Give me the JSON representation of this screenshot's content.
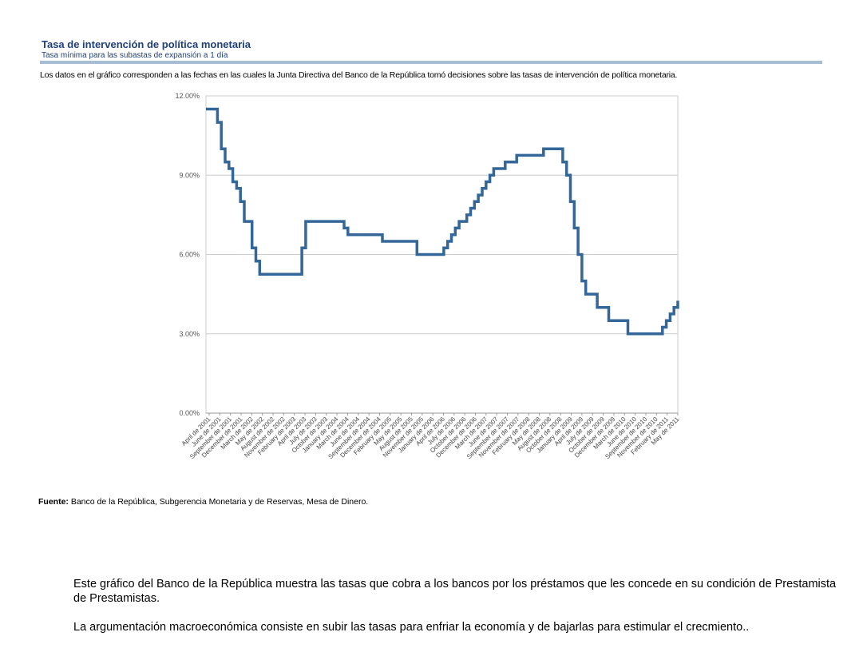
{
  "header": {
    "title": "Tasa de intervención  de política monetaria",
    "subtitle": "Tasa mínima para las subastas de expansión a 1 día"
  },
  "note": "Los datos en el gráfico corresponden a las fechas en las cuales la Junta Directiva del Banco de la República tomó decisiones sobre las tasas de intervención de política monetaria.",
  "source": {
    "label": "Fuente:",
    "text": "Banco de la República, Subgerencia Monetaria y de Reservas, Mesa de Dinero."
  },
  "commentary": {
    "p1": "Este gráfico del Banco de la República muestra las tasas que cobra a los bancos por los préstamos que les concede en su condición de Prestamista de Prestamistas.",
    "p2": "La argumentación macroeconómica consiste en subir las tasas para enfriar la economía y de bajarlas para estimular el crecmiento.."
  },
  "chart_data": {
    "type": "line",
    "step": true,
    "title": "",
    "xlabel": "",
    "ylabel": "",
    "ylim": [
      0,
      12
    ],
    "y_ticks": [
      "0.00%",
      "3.00%",
      "6.00%",
      "9.00%",
      "12.00%"
    ],
    "grid": true,
    "line_color": "#336699",
    "x_ticks": [
      "April de 2001",
      "June de 2001",
      "September de 2001",
      "December de 2001",
      "March de 2002",
      "May de 2002",
      "August de 2002",
      "November de 2002",
      "February de 2003",
      "April de 2003",
      "July de 2003",
      "October de 2003",
      "January de 2004",
      "March de 2004",
      "June de 2004",
      "September de 2004",
      "December de 2004",
      "February de 2005",
      "May de 2005",
      "August de 2005",
      "November de 2005",
      "January de 2006",
      "April de 2006",
      "July de 2006",
      "October de 2006",
      "December de 2006",
      "March de 2007",
      "June de 2007",
      "September de 2007",
      "November de 2007",
      "February de 2008",
      "May de 2008",
      "August de 2008",
      "October de 2008",
      "January de 2009",
      "April de 2009",
      "July de 2009",
      "October de 2009",
      "December de 2009",
      "March de 2010",
      "June de 2010",
      "September de 2010",
      "November de 2010",
      "February de 2011",
      "May de 2011"
    ],
    "x": [
      "2001-03",
      "2001-06",
      "2001-07",
      "2001-08",
      "2001-09",
      "2001-10",
      "2001-11",
      "2001-12",
      "2002-01",
      "2002-03",
      "2002-04",
      "2002-05",
      "2002-06",
      "2003-04",
      "2003-05",
      "2004-03",
      "2004-04",
      "2005-01",
      "2005-10",
      "2006-05",
      "2006-06",
      "2006-07",
      "2006-08",
      "2006-09",
      "2006-10",
      "2006-11",
      "2006-12",
      "2007-01",
      "2007-02",
      "2007-03",
      "2007-04",
      "2007-05",
      "2007-06",
      "2007-07",
      "2007-09",
      "2007-12",
      "2008-03",
      "2008-07",
      "2008-12",
      "2009-01",
      "2009-02",
      "2009-03",
      "2009-04",
      "2009-05",
      "2009-06",
      "2009-07",
      "2009-09",
      "2009-12",
      "2010-05",
      "2011-02",
      "2011-03",
      "2011-04",
      "2011-05",
      "2011-06"
    ],
    "series": [
      {
        "values": [
          11.5,
          11.0,
          10.0,
          9.5,
          9.25,
          8.75,
          8.5,
          8.0,
          7.25,
          6.25,
          5.75,
          5.25,
          5.25,
          6.25,
          7.25,
          7.0,
          6.75,
          6.5,
          6.0,
          6.25,
          6.5,
          6.75,
          7.0,
          7.25,
          7.25,
          7.5,
          7.75,
          8.0,
          8.25,
          8.5,
          8.75,
          9.0,
          9.25,
          9.25,
          9.5,
          9.75,
          9.75,
          10.0,
          9.5,
          9.0,
          8.0,
          7.0,
          6.0,
          5.0,
          4.5,
          4.5,
          4.0,
          3.5,
          3.0,
          3.25,
          3.5,
          3.75,
          4.0,
          4.25
        ]
      }
    ]
  }
}
